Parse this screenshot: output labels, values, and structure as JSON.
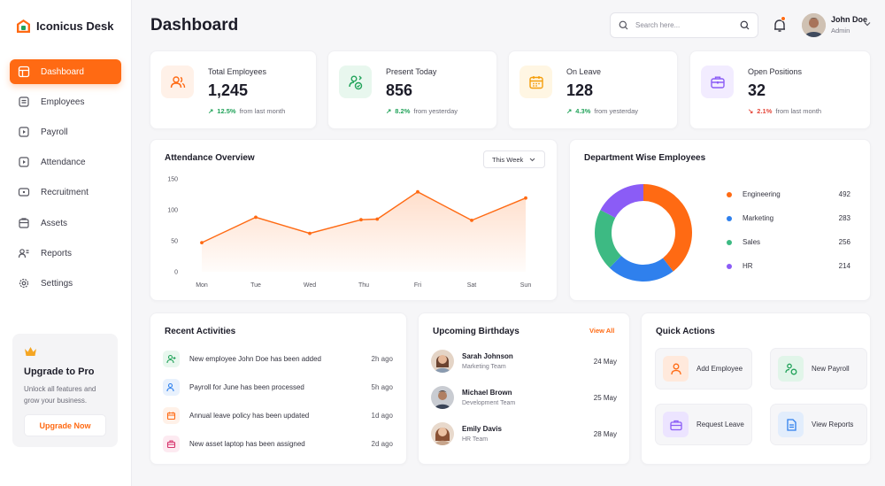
{
  "app": {
    "name": "Iconicus Desk"
  },
  "sidebar": {
    "items": [
      {
        "label": "Dashboard",
        "icon": "dashboard-icon",
        "active": true
      },
      {
        "label": "Employees",
        "icon": "employees-icon"
      },
      {
        "label": "Payroll",
        "icon": "payroll-icon"
      },
      {
        "label": "Attendance",
        "icon": "attendance-icon"
      },
      {
        "label": "Recruitment",
        "icon": "recruitment-icon"
      },
      {
        "label": "Assets",
        "icon": "assets-icon"
      },
      {
        "label": "Reports",
        "icon": "reports-icon"
      },
      {
        "label": "Settings",
        "icon": "settings-icon"
      }
    ],
    "upgrade": {
      "title": "Upgrade to Pro",
      "subtitle_line1": "Unlock all features and",
      "subtitle_line2": "grow your business.",
      "button": "Upgrade Now"
    }
  },
  "header": {
    "title": "Dashboard",
    "search_placeholder": "Search here...",
    "user": {
      "name": "John Doe",
      "role": "Admin"
    }
  },
  "stats": [
    {
      "label": "Total Employees",
      "value": "1,245",
      "trend": "12.5%",
      "trend_dir": "up",
      "trend_note": "from last month",
      "icon": "users-icon",
      "color": "#ff6a13",
      "bg": "#fff1e8"
    },
    {
      "label": "Present Today",
      "value": "856",
      "trend": "8.2%",
      "trend_dir": "up",
      "trend_note": "from yesterday",
      "icon": "user-check-icon",
      "color": "#22a35a",
      "bg": "#e8f7ee"
    },
    {
      "label": "On Leave",
      "value": "128",
      "trend": "4.3%",
      "trend_dir": "up",
      "trend_note": "from yesterday",
      "icon": "calendar-icon",
      "color": "#f59e0b",
      "bg": "#fff6e3"
    },
    {
      "label": "Open Positions",
      "value": "32",
      "trend": "2.1%",
      "trend_dir": "down",
      "trend_note": "from last month",
      "icon": "briefcase-icon",
      "color": "#8b5cf6",
      "bg": "#f2ecff"
    }
  ],
  "attendance": {
    "title": "Attendance Overview",
    "period": "This Week"
  },
  "chart_data": [
    {
      "type": "area",
      "title": "Attendance Overview",
      "categories": [
        "Mon",
        "Tue",
        "Wed",
        "Thu",
        "Fri",
        "Sat",
        "Sun"
      ],
      "x": [
        0,
        1,
        2,
        2.95,
        3.25,
        4,
        5,
        6
      ],
      "values": [
        47,
        88,
        62,
        84,
        85,
        129,
        83,
        119
      ],
      "ylim": [
        0,
        150
      ],
      "yticks": [
        0,
        50,
        100,
        150
      ],
      "color": "#ff6a13",
      "grid": false
    },
    {
      "type": "pie",
      "title": "Department Wise Employees",
      "donut": true,
      "slices": [
        {
          "label": "Engineering",
          "value": 492,
          "color": "#ff6a13"
        },
        {
          "label": "Marketing",
          "value": 283,
          "color": "#2f80ed"
        },
        {
          "label": "Sales",
          "value": 256,
          "color": "#3dba83"
        },
        {
          "label": "HR",
          "value": 214,
          "color": "#8b5cf6"
        }
      ],
      "legend": "right"
    }
  ],
  "departments": {
    "title": "Department Wise Employees"
  },
  "activities": {
    "title": "Recent Activities",
    "items": [
      {
        "text": "New employee John Doe has been added",
        "time": "2h ago",
        "icon": "user-add-icon",
        "color": "#22a35a",
        "bg": "#e8f7ee"
      },
      {
        "text": "Payroll for June has been processed",
        "time": "5h ago",
        "icon": "payroll-icon",
        "color": "#2f80ed",
        "bg": "#e8f1fd"
      },
      {
        "text": "Annual leave policy has been updated",
        "time": "1d ago",
        "icon": "calendar-icon",
        "color": "#ff6a13",
        "bg": "#fff1e8"
      },
      {
        "text": "New asset laptop has been assigned",
        "time": "2d ago",
        "icon": "briefcase-icon",
        "color": "#d6336c",
        "bg": "#fdeaf1"
      }
    ]
  },
  "birthdays": {
    "title": "Upcoming Birthdays",
    "view_all": "View All",
    "items": [
      {
        "name": "Sarah Johnson",
        "dept": "Marketing Team",
        "date": "24 May"
      },
      {
        "name": "Michael Brown",
        "dept": "Development Team",
        "date": "25 May"
      },
      {
        "name": "Emily Davis",
        "dept": "HR Team",
        "date": "28 May"
      }
    ]
  },
  "quick_actions": {
    "title": "Quick Actions",
    "items": [
      {
        "label": "Add Employee",
        "icon": "user-add-icon",
        "color": "#ff6a13",
        "bg": "#ffe9dc"
      },
      {
        "label": "New Payroll",
        "icon": "payroll-icon",
        "color": "#22a35a",
        "bg": "#e1f5e9"
      },
      {
        "label": "Request Leave",
        "icon": "briefcase-icon",
        "color": "#8b5cf6",
        "bg": "#ece4ff"
      },
      {
        "label": "View Reports",
        "icon": "reports-icon",
        "color": "#2f80ed",
        "bg": "#e2edfc"
      }
    ]
  }
}
